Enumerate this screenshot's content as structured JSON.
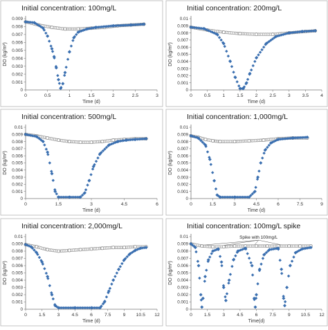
{
  "chart_data": [
    {
      "type": "scatter",
      "title": "Initial concentration: 100mg/L",
      "xlabel": "Time (d)",
      "ylabel": "DO (kg/m³)",
      "xlim": [
        0,
        3
      ],
      "ylim": [
        0,
        0.009
      ],
      "xticks": [
        "0",
        "0.5",
        "1",
        "1.5",
        "2",
        "2.5",
        "3"
      ],
      "yticks": [
        "0",
        "0.001",
        "0.002",
        "0.003",
        "0.004",
        "0.005",
        "0.006",
        "0.007",
        "0.008",
        "0.009"
      ],
      "grid": false,
      "series": [
        {
          "role": "control",
          "color": "#8c8c8c",
          "x": [
            0,
            0.3,
            0.6,
            0.9,
            1.2,
            1.5,
            1.8,
            2.1,
            2.4,
            2.7
          ],
          "y": [
            0.0086,
            0.0082,
            0.0079,
            0.0077,
            0.0077,
            0.0078,
            0.0079,
            0.0081,
            0.0082,
            0.0083
          ]
        },
        {
          "role": "treated",
          "color": "#3a6fb0",
          "x": [
            0,
            0.2,
            0.4,
            0.5,
            0.6,
            0.65,
            0.7,
            0.75,
            0.8,
            0.85,
            0.9,
            1.0,
            1.1,
            1.2,
            1.4,
            1.6,
            2.0,
            2.4,
            2.7
          ],
          "y": [
            0.0086,
            0.0085,
            0.0078,
            0.0068,
            0.0052,
            0.0042,
            0.0028,
            0.0013,
            0.0002,
            0.0008,
            0.0022,
            0.0048,
            0.0066,
            0.0073,
            0.0077,
            0.0079,
            0.0081,
            0.0082,
            0.0083
          ]
        }
      ]
    },
    {
      "type": "scatter",
      "title": "Initial concentration: 200mg/L",
      "xlabel": "Time (d)",
      "ylabel": "DO (kg/m³)",
      "xlim": [
        0,
        4
      ],
      "ylim": [
        0,
        0.01
      ],
      "xticks": [
        "0",
        "0.5",
        "1",
        "1.5",
        "2",
        "2.5",
        "3",
        "3.5",
        "4"
      ],
      "yticks": [
        "0",
        "0.001",
        "0.002",
        "0.003",
        "0.004",
        "0.005",
        "0.006",
        "0.007",
        "0.008",
        "0.009",
        "0.01"
      ],
      "grid": false,
      "series": [
        {
          "role": "control",
          "color": "#8c8c8c",
          "x": [
            0,
            0.5,
            1.0,
            1.5,
            2.0,
            2.5,
            3.0,
            3.5,
            3.8
          ],
          "y": [
            0.0088,
            0.0084,
            0.0081,
            0.0079,
            0.0078,
            0.0078,
            0.008,
            0.0082,
            0.0083
          ]
        },
        {
          "role": "treated",
          "color": "#3a6fb0",
          "x": [
            0,
            0.4,
            0.8,
            1.0,
            1.2,
            1.35,
            1.5,
            1.6,
            1.7,
            1.8,
            2.0,
            2.3,
            2.6,
            3.0,
            3.4,
            3.8
          ],
          "y": [
            0.0088,
            0.0086,
            0.0078,
            0.0065,
            0.004,
            0.0018,
            0.0002,
            0.0002,
            0.001,
            0.0023,
            0.0045,
            0.0065,
            0.0075,
            0.008,
            0.0082,
            0.0083
          ]
        }
      ]
    },
    {
      "type": "scatter",
      "title": "Initial concentration: 500mg/L",
      "xlabel": "Time (d)",
      "ylabel": "DO (kg/m³)",
      "xlim": [
        0,
        6
      ],
      "ylim": [
        0,
        0.01
      ],
      "xticks": [
        "0",
        "1.5",
        "3",
        "4.5",
        "6"
      ],
      "yticks": [
        "0",
        "0.001",
        "0.002",
        "0.003",
        "0.004",
        "0.005",
        "0.006",
        "0.007",
        "0.008",
        "0.009",
        "0.01"
      ],
      "grid": false,
      "series": [
        {
          "role": "control",
          "color": "#8c8c8c",
          "x": [
            0,
            0.5,
            1.0,
            1.5,
            2.0,
            2.5,
            3.0,
            3.5,
            4.0,
            4.5,
            5.0,
            5.5
          ],
          "y": [
            0.009,
            0.0088,
            0.0085,
            0.0082,
            0.008,
            0.0079,
            0.0079,
            0.008,
            0.0082,
            0.0083,
            0.0084,
            0.0084
          ]
        },
        {
          "role": "treated",
          "color": "#3a6fb0",
          "x": [
            0,
            0.5,
            0.8,
            1.0,
            1.2,
            1.35,
            1.5,
            2.0,
            2.5,
            2.7,
            2.9,
            3.1,
            3.4,
            3.8,
            4.2,
            4.6,
            5.0,
            5.5
          ],
          "y": [
            0.009,
            0.0087,
            0.008,
            0.0065,
            0.0035,
            0.001,
            0.0002,
            0.0002,
            0.0002,
            0.0008,
            0.0025,
            0.0045,
            0.0063,
            0.0075,
            0.008,
            0.0082,
            0.0083,
            0.0084
          ]
        }
      ]
    },
    {
      "type": "scatter",
      "title": "Initial concentration: 1,000mg/L",
      "xlabel": "Time (d)",
      "ylabel": "DO (kg/m³)",
      "xlim": [
        0,
        9
      ],
      "ylim": [
        0,
        0.01
      ],
      "xticks": [
        "0",
        "1.5",
        "3",
        "4.5",
        "6",
        "7.5",
        "9"
      ],
      "yticks": [
        "0",
        "0.001",
        "0.002",
        "0.003",
        "0.004",
        "0.005",
        "0.006",
        "0.007",
        "0.008",
        "0.009",
        "0.01"
      ],
      "grid": false,
      "series": [
        {
          "role": "control",
          "color": "#8c8c8c",
          "x": [
            0,
            0.5,
            1.0,
            1.5,
            2.0,
            3.0,
            4.0,
            5.0,
            6.0,
            7.0,
            8.0
          ],
          "y": [
            0.0088,
            0.0086,
            0.0083,
            0.0081,
            0.008,
            0.008,
            0.0081,
            0.0082,
            0.0084,
            0.0085,
            0.0085
          ]
        },
        {
          "role": "treated",
          "color": "#3a6fb0",
          "x": [
            0,
            0.5,
            1.0,
            1.3,
            1.6,
            1.8,
            2.0,
            3.0,
            4.0,
            4.4,
            4.6,
            4.8,
            5.1,
            5.5,
            6.0,
            7.0,
            8.0
          ],
          "y": [
            0.0088,
            0.0085,
            0.0075,
            0.0055,
            0.0025,
            0.0005,
            0.0002,
            0.0002,
            0.0002,
            0.001,
            0.003,
            0.005,
            0.0068,
            0.0078,
            0.0083,
            0.0085,
            0.0086
          ]
        }
      ]
    },
    {
      "type": "scatter",
      "title": "Initial concentration: 2,000mg/L",
      "xlabel": "Time (d)",
      "ylabel": "DO (kg/m³)",
      "xlim": [
        0,
        12
      ],
      "ylim": [
        0,
        0.01
      ],
      "xticks": [
        "0",
        "1.5",
        "3",
        "4.5",
        "6",
        "7.5",
        "9",
        "10.5",
        "12"
      ],
      "yticks": [
        "0",
        "0.001",
        "0.002",
        "0.003",
        "0.004",
        "0.005",
        "0.006",
        "0.007",
        "0.008",
        "0.009",
        "0.01"
      ],
      "grid": false,
      "series": [
        {
          "role": "control",
          "color": "#8c8c8c",
          "x": [
            0,
            1.0,
            2.0,
            3.0,
            4.0,
            5.0,
            6.0,
            7.0,
            8.0,
            9.0,
            10.0,
            11.0
          ],
          "y": [
            0.0089,
            0.0086,
            0.0082,
            0.008,
            0.0081,
            0.0082,
            0.0083,
            0.0084,
            0.0085,
            0.0085,
            0.0086,
            0.0086
          ]
        },
        {
          "role": "treated",
          "color": "#3a6fb0",
          "x": [
            0,
            0.5,
            1.0,
            1.5,
            2.0,
            2.4,
            2.7,
            3.0,
            4.5,
            6.0,
            6.8,
            7.2,
            7.6,
            8.0,
            8.5,
            9.0,
            9.5,
            10.0,
            10.5,
            11.0
          ],
          "y": [
            0.0089,
            0.0086,
            0.0078,
            0.0065,
            0.0045,
            0.002,
            0.0005,
            0.0002,
            0.0002,
            0.0002,
            0.0002,
            0.001,
            0.0025,
            0.004,
            0.0055,
            0.0068,
            0.0076,
            0.0081,
            0.0084,
            0.0085
          ]
        }
      ]
    },
    {
      "type": "scatter",
      "title": "Initial concentration: 100mg/L spike",
      "xlabel": "Time(d)",
      "ylabel": "DO (kg/m³)",
      "annotation": "Spike with 100mg/L",
      "spikes_x": [
        0.9,
        3.0,
        5.8,
        8.5
      ],
      "xlim": [
        0,
        12
      ],
      "ylim": [
        0,
        0.01
      ],
      "xticks": [
        "0",
        "1.5",
        "3",
        "4.5",
        "6",
        "7.5",
        "9",
        "10.5",
        "12"
      ],
      "yticks": [
        "0",
        "0.001",
        "0.002",
        "0.003",
        "0.004",
        "0.005",
        "0.006",
        "0.007",
        "0.008",
        "0.009",
        "0.01"
      ],
      "grid": false,
      "series": [
        {
          "role": "control",
          "color": "#8c8c8c",
          "x": [
            0,
            1,
            2,
            3,
            4,
            5,
            6,
            7,
            8,
            9,
            10,
            11
          ],
          "y": [
            0.009,
            0.0087,
            0.0086,
            0.0086,
            0.0087,
            0.0087,
            0.0087,
            0.0087,
            0.0087,
            0.0087,
            0.0087,
            0.0087
          ]
        },
        {
          "role": "treated",
          "color": "#3a6fb0",
          "x": [
            0,
            0.4,
            0.7,
            0.9,
            1.0,
            1.1,
            1.3,
            1.6,
            2.0,
            2.5,
            2.8,
            3.0,
            3.2,
            3.5,
            3.9,
            4.3,
            5.0,
            5.6,
            5.8,
            5.9,
            6.0,
            6.3,
            6.7,
            7.2,
            8.0,
            8.3,
            8.5,
            8.6,
            8.8,
            9.1,
            9.6,
            10.2,
            11.0
          ],
          "y": [
            0.009,
            0.0085,
            0.006,
            0.002,
            0.0003,
            0.0015,
            0.0045,
            0.0068,
            0.008,
            0.0083,
            0.0065,
            0.003,
            0.0012,
            0.004,
            0.0068,
            0.008,
            0.0084,
            0.006,
            0.0015,
            0.0003,
            0.002,
            0.0055,
            0.0075,
            0.0082,
            0.0084,
            0.0055,
            0.0015,
            0.0005,
            0.003,
            0.006,
            0.0078,
            0.0083,
            0.0085
          ]
        }
      ]
    }
  ]
}
